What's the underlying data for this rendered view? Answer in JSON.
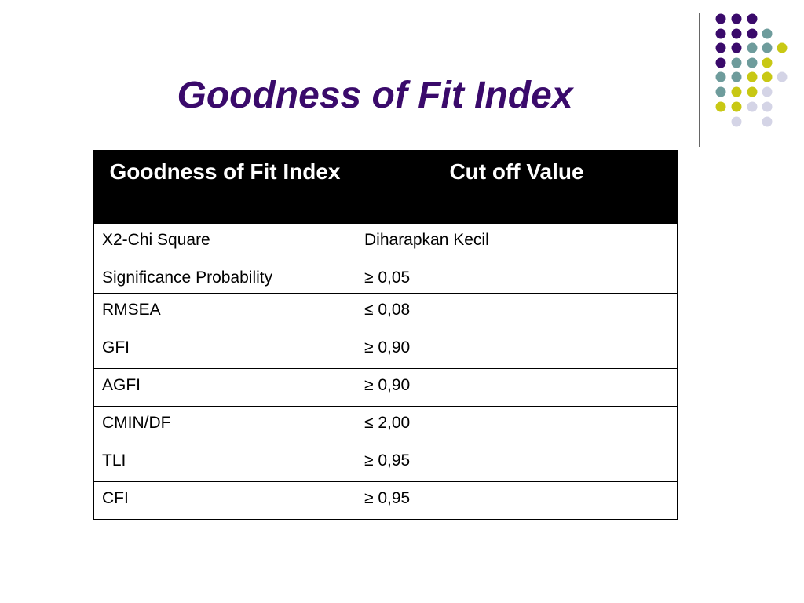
{
  "slide": {
    "title": "Goodness of Fit Index",
    "title_color": "#3a0a6b"
  },
  "table": {
    "headers": [
      "Goodness of Fit Index",
      "Cut off Value"
    ],
    "rows": [
      {
        "index": "X2-Chi Square",
        "cutoff": "Diharapkan Kecil"
      },
      {
        "index": "Significance Probability",
        "cutoff": "≥ 0,05"
      },
      {
        "index": "RMSEA",
        "cutoff": "≤ 0,08"
      },
      {
        "index": "GFI",
        "cutoff": "≥ 0,90"
      },
      {
        "index": "AGFI",
        "cutoff": "≥ 0,90"
      },
      {
        "index": "CMIN/DF",
        "cutoff": "≤ 2,00"
      },
      {
        "index": "TLI",
        "cutoff": "≥ 0,95"
      },
      {
        "index": "CFI",
        "cutoff": "≥ 0,95"
      }
    ]
  },
  "decor": {
    "colors": {
      "purple": "#3a0a6b",
      "teal": "#6e9c9c",
      "lime": "#c8c814",
      "lavender": "#d4d4e6"
    }
  }
}
